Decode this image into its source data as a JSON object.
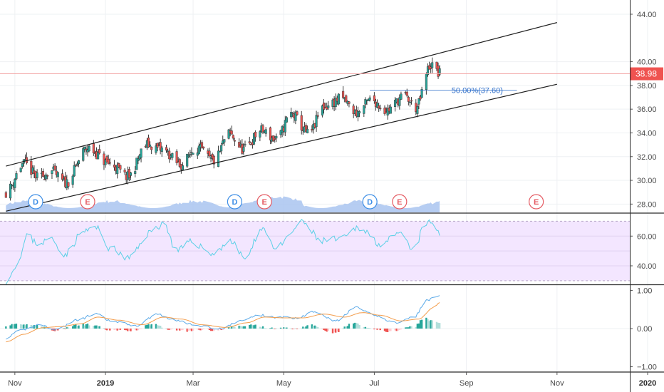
{
  "colors": {
    "up": "#26a69a",
    "down": "#ef5350",
    "channel": "#1e1e1e",
    "volume": "#a9c4f0",
    "rsi_line": "#5bd0e6",
    "rsi_band": "#f3e6ff",
    "macd_line": "#5aa9e8",
    "signal_line": "#f39c4a",
    "price_line": "#f2a5a5",
    "price_badge": "#ef5350",
    "fib": "#2f6fca",
    "dividend": "#3d8ee6",
    "earnings": "#e45a62"
  },
  "chart_data": [
    {
      "type": "candlestick",
      "panel": "price",
      "ylim": [
        27.3,
        45.2
      ],
      "yticks": [
        28.0,
        30.0,
        32.0,
        34.0,
        36.0,
        38.0,
        40.0,
        44.0
      ],
      "ytick_labels": [
        "28.00",
        "30.00",
        "32.00",
        "34.00",
        "36.00",
        "38.00",
        "40.00",
        "44.00"
      ],
      "last_price": 38.98,
      "last_price_label": "38.98",
      "xlim_days": [
        -4,
        420
      ],
      "x_date_ticks": [
        "Nov",
        "2019",
        "Mar",
        "May",
        "Jul",
        "Sep",
        "Nov",
        "2020"
      ],
      "close_anchors": [
        [
          0,
          29.0
        ],
        [
          12,
          31.4
        ],
        [
          22,
          30.2
        ],
        [
          30,
          30.8
        ],
        [
          40,
          29.8
        ],
        [
          55,
          32.7
        ],
        [
          70,
          31.4
        ],
        [
          82,
          30.3
        ],
        [
          95,
          33.0
        ],
        [
          105,
          32.6
        ],
        [
          118,
          31.3
        ],
        [
          128,
          32.8
        ],
        [
          140,
          31.6
        ],
        [
          150,
          33.9
        ],
        [
          160,
          32.6
        ],
        [
          172,
          34.2
        ],
        [
          182,
          33.4
        ],
        [
          192,
          35.6
        ],
        [
          204,
          33.9
        ],
        [
          214,
          36.2
        ],
        [
          226,
          36.9
        ],
        [
          236,
          35.7
        ],
        [
          246,
          36.8
        ],
        [
          256,
          35.9
        ],
        [
          268,
          37.1
        ],
        [
          276,
          36.1
        ],
        [
          286,
          39.7
        ],
        [
          292,
          38.98
        ]
      ],
      "channel_lines": [
        {
          "from": [
            "2018-10-26",
            31.2
          ],
          "to": [
            "2019-11-01",
            43.3
          ]
        },
        {
          "from": [
            "2018-10-26",
            27.4
          ],
          "to": [
            "2019-11-01",
            38.1
          ]
        }
      ],
      "fib_level": {
        "label": "50.00%(37.60)",
        "value": 37.6
      },
      "events": [
        {
          "letter": "D",
          "date": "2018-11-15"
        },
        {
          "letter": "E",
          "date": "2018-12-20"
        },
        {
          "letter": "D",
          "date": "2019-03-29"
        },
        {
          "letter": "E",
          "date": "2019-04-18"
        },
        {
          "letter": "D",
          "date": "2019-06-28"
        },
        {
          "letter": "E",
          "date": "2019-07-18"
        },
        {
          "letter": "E",
          "date": "2019-10-18"
        }
      ]
    },
    {
      "type": "line",
      "panel": "rsi",
      "ylim": [
        28,
        75
      ],
      "yticks": [
        40.0,
        60.0
      ],
      "ytick_labels": [
        "40.00",
        "60.00"
      ],
      "band": [
        30,
        70
      ],
      "guides": [
        40,
        50,
        60,
        70,
        30
      ],
      "anchors": [
        [
          0,
          30
        ],
        [
          4,
          36
        ],
        [
          10,
          48
        ],
        [
          14,
          60
        ],
        [
          22,
          55
        ],
        [
          30,
          58
        ],
        [
          40,
          48
        ],
        [
          52,
          63
        ],
        [
          60,
          66
        ],
        [
          70,
          52
        ],
        [
          82,
          45
        ],
        [
          98,
          63
        ],
        [
          106,
          69
        ],
        [
          115,
          50
        ],
        [
          125,
          56
        ],
        [
          140,
          48
        ],
        [
          150,
          57
        ],
        [
          162,
          45
        ],
        [
          172,
          66
        ],
        [
          182,
          52
        ],
        [
          200,
          69
        ],
        [
          212,
          57
        ],
        [
          226,
          58
        ],
        [
          238,
          66
        ],
        [
          252,
          55
        ],
        [
          266,
          61
        ],
        [
          274,
          50
        ],
        [
          283,
          69
        ],
        [
          288,
          68
        ],
        [
          292,
          61
        ]
      ]
    },
    {
      "type": "macd",
      "panel": "macd",
      "ylim": [
        -1.12,
        1.12
      ],
      "yticks": [
        1.0,
        0.0,
        -1.0
      ],
      "ytick_labels": [
        "1.00",
        "0.00",
        "−1.00"
      ],
      "macd_anchors": [
        [
          0,
          -0.25
        ],
        [
          10,
          -0.05
        ],
        [
          22,
          0.1
        ],
        [
          34,
          -0.02
        ],
        [
          48,
          0.22
        ],
        [
          60,
          0.38
        ],
        [
          72,
          0.18
        ],
        [
          88,
          0.08
        ],
        [
          102,
          0.38
        ],
        [
          114,
          0.22
        ],
        [
          128,
          0.08
        ],
        [
          145,
          0.0
        ],
        [
          158,
          0.2
        ],
        [
          170,
          0.35
        ],
        [
          182,
          0.3
        ],
        [
          196,
          0.28
        ],
        [
          208,
          0.45
        ],
        [
          222,
          0.2
        ],
        [
          236,
          0.55
        ],
        [
          248,
          0.35
        ],
        [
          262,
          0.15
        ],
        [
          274,
          0.28
        ],
        [
          284,
          0.75
        ],
        [
          292,
          0.88
        ]
      ],
      "signal_anchors": [
        [
          0,
          -0.35
        ],
        [
          12,
          -0.15
        ],
        [
          24,
          0.02
        ],
        [
          36,
          0.05
        ],
        [
          50,
          0.12
        ],
        [
          62,
          0.3
        ],
        [
          76,
          0.22
        ],
        [
          92,
          0.1
        ],
        [
          106,
          0.3
        ],
        [
          118,
          0.25
        ],
        [
          132,
          0.1
        ],
        [
          148,
          0.03
        ],
        [
          162,
          0.15
        ],
        [
          174,
          0.3
        ],
        [
          188,
          0.28
        ],
        [
          200,
          0.28
        ],
        [
          214,
          0.38
        ],
        [
          228,
          0.3
        ],
        [
          240,
          0.42
        ],
        [
          252,
          0.35
        ],
        [
          266,
          0.2
        ],
        [
          278,
          0.25
        ],
        [
          288,
          0.55
        ],
        [
          292,
          0.68
        ]
      ],
      "histogram": "macd_minus_signal"
    }
  ]
}
